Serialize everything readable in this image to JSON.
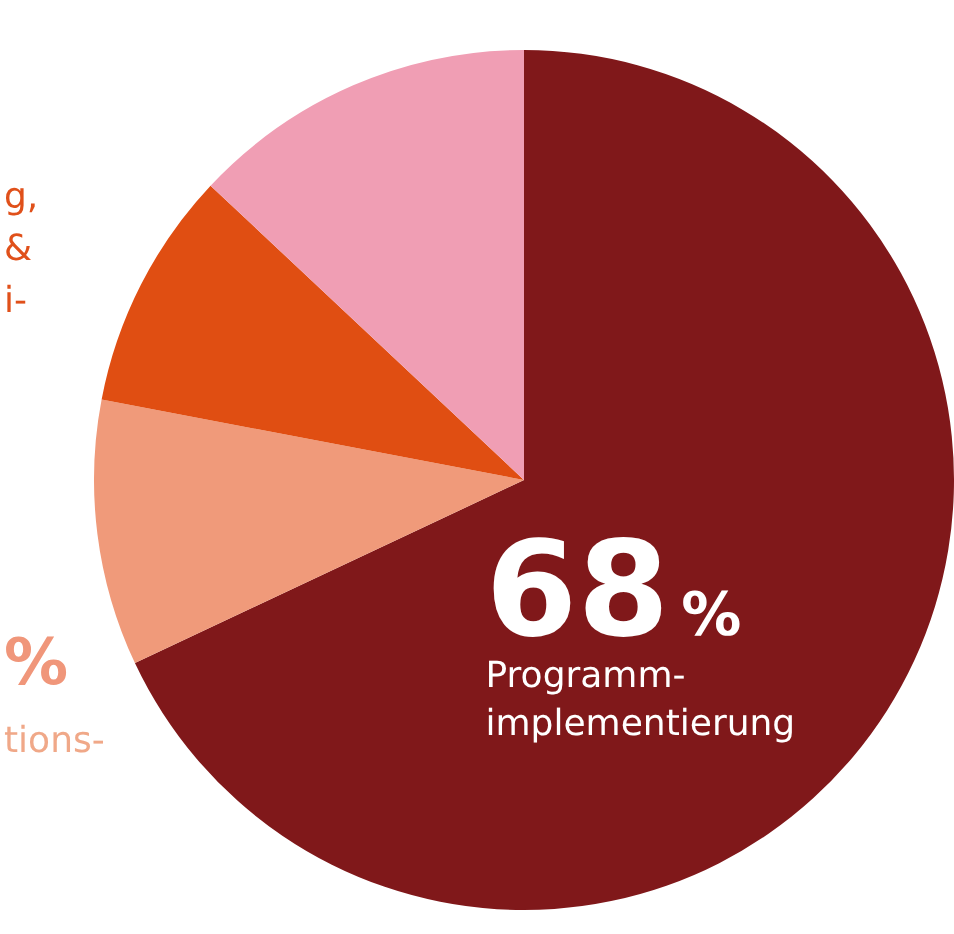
{
  "chart_data": {
    "type": "pie",
    "categories": [
      "Programm-\nimplementierung",
      null,
      null,
      null
    ],
    "values": [
      68,
      10,
      9,
      13
    ],
    "colors": [
      "#80181a",
      "#f09a7a",
      "#e04e12",
      "#f09eb4"
    ],
    "value_labels": [
      "68%",
      null,
      null,
      null
    ],
    "annotations": [
      "g,",
      "&",
      "i-",
      "%",
      "tions-"
    ]
  }
}
